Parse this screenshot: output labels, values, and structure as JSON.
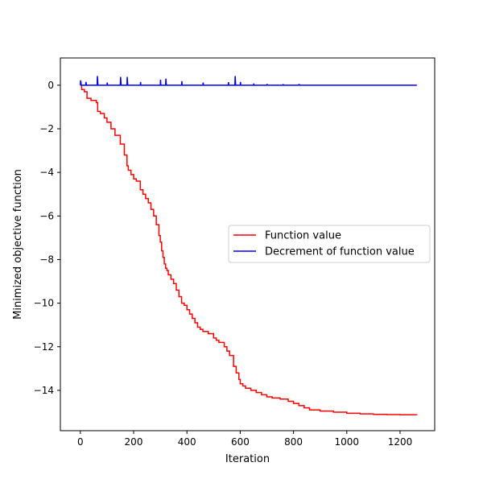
{
  "chart_data": {
    "type": "line",
    "title": "",
    "xlabel": "Iteration",
    "ylabel": "Minimized objective function",
    "xlim": [
      -75,
      1330
    ],
    "ylim": [
      -15.85,
      1.25
    ],
    "x_ticks": [
      0,
      200,
      400,
      600,
      800,
      1000,
      1200
    ],
    "y_ticks": [
      0,
      -2,
      -4,
      -6,
      -8,
      -10,
      -12,
      -14
    ],
    "x_tick_labels": [
      "0",
      "200",
      "400",
      "600",
      "800",
      "1000",
      "1200"
    ],
    "y_tick_labels": [
      "0",
      "−2",
      "−4",
      "−6",
      "−8",
      "−10",
      "−12",
      "−14"
    ],
    "grid": false,
    "legend_position": "center right",
    "series": [
      {
        "name": "Function value",
        "color": "#ff0000",
        "step": true,
        "x": [
          0,
          5,
          15,
          25,
          40,
          60,
          65,
          75,
          90,
          100,
          115,
          130,
          150,
          165,
          175,
          180,
          190,
          200,
          210,
          225,
          235,
          245,
          255,
          265,
          275,
          285,
          295,
          300,
          305,
          310,
          315,
          320,
          325,
          330,
          340,
          350,
          360,
          370,
          380,
          390,
          400,
          410,
          420,
          430,
          440,
          450,
          460,
          480,
          500,
          510,
          520,
          540,
          550,
          560,
          575,
          585,
          595,
          600,
          610,
          620,
          640,
          660,
          680,
          700,
          720,
          750,
          780,
          800,
          820,
          840,
          860,
          900,
          950,
          1000,
          1050,
          1100,
          1150,
          1200,
          1263
        ],
        "y": [
          0,
          -0.2,
          -0.3,
          -0.6,
          -0.7,
          -0.8,
          -1.2,
          -1.3,
          -1.5,
          -1.7,
          -2.0,
          -2.3,
          -2.7,
          -3.2,
          -3.7,
          -3.9,
          -4.1,
          -4.3,
          -4.4,
          -4.8,
          -5.0,
          -5.2,
          -5.4,
          -5.7,
          -6.0,
          -6.4,
          -6.9,
          -7.2,
          -7.6,
          -7.9,
          -8.2,
          -8.4,
          -8.5,
          -8.7,
          -8.9,
          -9.1,
          -9.4,
          -9.7,
          -10.0,
          -10.1,
          -10.3,
          -10.5,
          -10.7,
          -10.9,
          -11.1,
          -11.2,
          -11.3,
          -11.4,
          -11.6,
          -11.7,
          -11.8,
          -12.0,
          -12.2,
          -12.4,
          -12.9,
          -13.2,
          -13.5,
          -13.7,
          -13.8,
          -13.9,
          -14.0,
          -14.1,
          -14.2,
          -14.3,
          -14.35,
          -14.4,
          -14.5,
          -14.6,
          -14.7,
          -14.8,
          -14.9,
          -14.95,
          -15.0,
          -15.05,
          -15.08,
          -15.1,
          -15.11,
          -15.12,
          -15.13
        ]
      },
      {
        "name": "Decrement of function value",
        "color": "#0000ff",
        "x": [
          0,
          1,
          2,
          3,
          20,
          21,
          22,
          23,
          63,
          64,
          65,
          66,
          100,
          101,
          102,
          150,
          151,
          152,
          153,
          175,
          176,
          177,
          178,
          225,
          226,
          227,
          300,
          301,
          302,
          320,
          321,
          322,
          323,
          380,
          381,
          382,
          460,
          461,
          462,
          555,
          556,
          557,
          580,
          581,
          582,
          583,
          600,
          601,
          602,
          650,
          651,
          652,
          700,
          701,
          702,
          760,
          761,
          762,
          820,
          821,
          822,
          900,
          1000,
          1100,
          1263
        ],
        "y": [
          0,
          0.22,
          0.15,
          0,
          0,
          0.15,
          0.08,
          0,
          0,
          0.42,
          0.25,
          0,
          0,
          0.12,
          0,
          0,
          0.38,
          0.2,
          0,
          0,
          0.38,
          0.15,
          0,
          0,
          0.15,
          0,
          0,
          0.25,
          0,
          0,
          0.3,
          0.12,
          0,
          0,
          0.18,
          0,
          0,
          0.12,
          0,
          0,
          0.14,
          0,
          0,
          0.42,
          0.2,
          0,
          0,
          0.15,
          0,
          0,
          0.08,
          0,
          0,
          0.06,
          0,
          0,
          0.05,
          0,
          0,
          0.06,
          0,
          0,
          0,
          0,
          0
        ]
      }
    ]
  }
}
